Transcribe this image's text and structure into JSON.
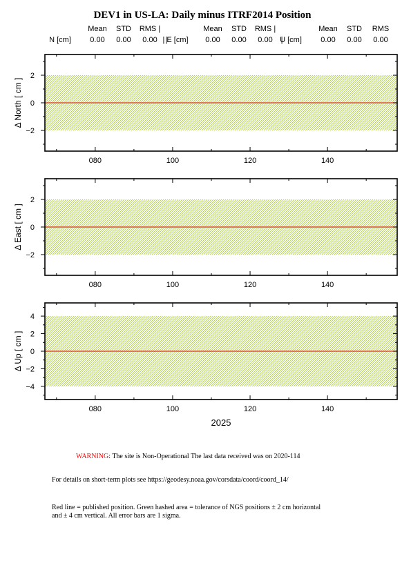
{
  "page": {
    "title": "DEV1 in US-LA: Daily minus ITRF2014 Position"
  },
  "stats": {
    "headers": [
      "Mean",
      "STD",
      "RMS |"
    ],
    "last_headers": [
      "Mean",
      "STD",
      "RMS"
    ],
    "blocks": [
      {
        "label": "N [cm]",
        "mean": "0.00",
        "std": "0.00",
        "rms": "0.00",
        "sep": "|"
      },
      {
        "label": "| E [cm]",
        "mean": "0.00",
        "std": "0.00",
        "rms": "0.00",
        "sep": "|"
      },
      {
        "label": "U [cm]",
        "mean": "0.00",
        "std": "0.00",
        "rms": "0.00",
        "sep": ""
      }
    ]
  },
  "chart_data": [
    {
      "type": "line",
      "ylabel": "Δ North  [ cm ]",
      "xlim": [
        67,
        158
      ],
      "ylim": [
        -3.5,
        3.5
      ],
      "yticks": [
        -2,
        0,
        2
      ],
      "xticks": [
        80,
        100,
        120,
        140
      ],
      "xtick_labels": [
        "080",
        "100",
        "120",
        "140"
      ],
      "tolerance": [
        -2,
        2
      ],
      "published_line": 0,
      "series": []
    },
    {
      "type": "line",
      "ylabel": "Δ East  [ cm ]",
      "xlim": [
        67,
        158
      ],
      "ylim": [
        -3.5,
        3.5
      ],
      "yticks": [
        -2,
        0,
        2
      ],
      "xticks": [
        80,
        100,
        120,
        140
      ],
      "xtick_labels": [
        "080",
        "100",
        "120",
        "140"
      ],
      "tolerance": [
        -2,
        2
      ],
      "published_line": 0,
      "series": []
    },
    {
      "type": "line",
      "ylabel": "Δ Up  [ cm ]",
      "xlabel": "2025",
      "xlim": [
        67,
        158
      ],
      "ylim": [
        -5.5,
        5.5
      ],
      "yticks": [
        -4,
        -2,
        0,
        2,
        4
      ],
      "xticks": [
        80,
        100,
        120,
        140
      ],
      "xtick_labels": [
        "080",
        "100",
        "120",
        "140"
      ],
      "tolerance": [
        -4,
        4
      ],
      "published_line": 0,
      "series": []
    }
  ],
  "colors": {
    "tolerance_fill": "#b5d65a",
    "published_line": "#e0301e",
    "warning": "#ff0000"
  },
  "notes": {
    "warning_label": "WARNING",
    "warning_text": ": The site is Non-Operational The last data received was on 2020-114",
    "details": "For details on short-term plots see https://geodesy.noaa.gov/corsdata/coord/coord_14/",
    "legend_line1": "Red line = published position.  Green hashed area = tolerance of NGS positions ± 2 cm horizontal",
    "legend_line2": "and ± 4 cm vertical.  All error bars are 1 sigma."
  }
}
